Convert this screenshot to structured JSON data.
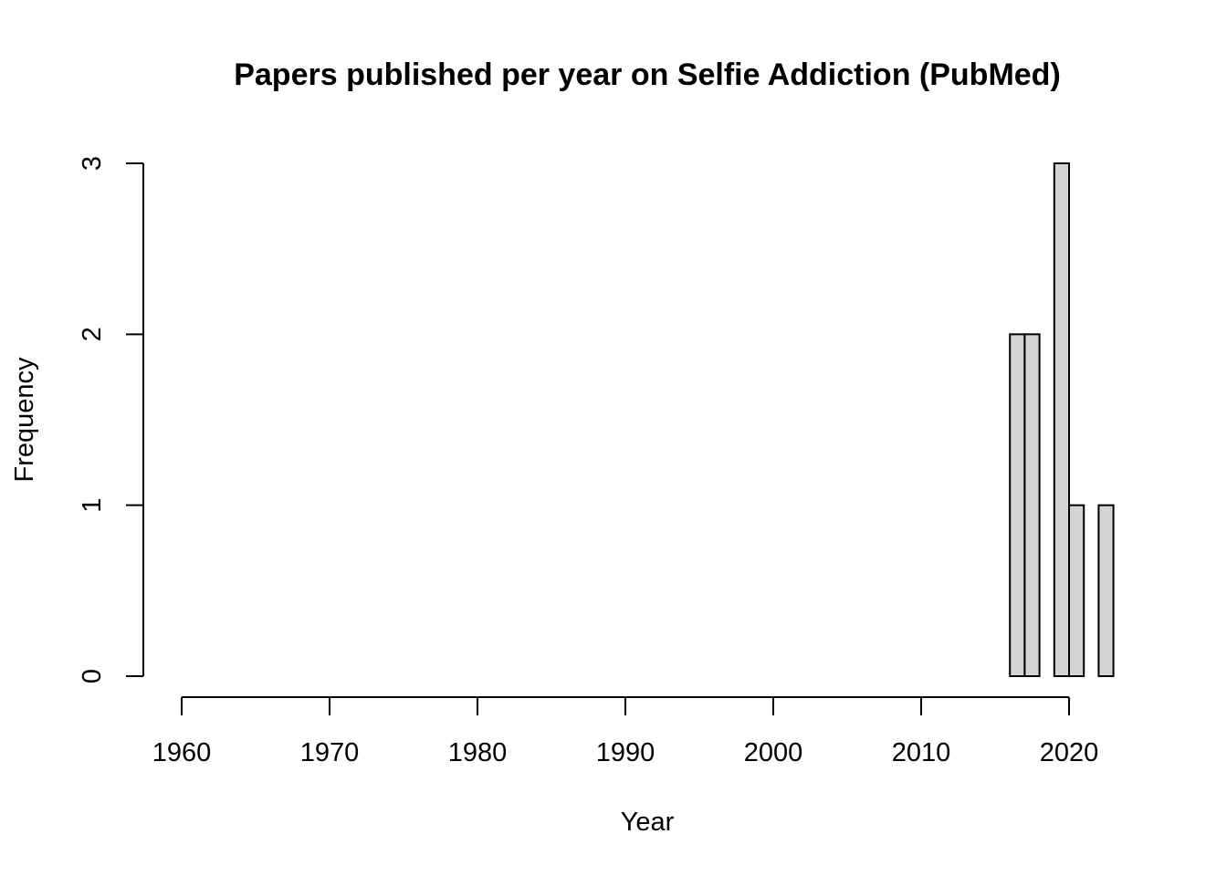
{
  "chart_data": {
    "type": "bar",
    "title": "Papers published per year on Selfie Addiction (PubMed)",
    "xlabel": "Year",
    "ylabel": "Frequency",
    "x_ticks": [
      1960,
      1970,
      1980,
      1990,
      2000,
      2010,
      2020
    ],
    "x_tick_labels": [
      "1960",
      "1970",
      "1980",
      "1990",
      "2000",
      "2010",
      "2020"
    ],
    "y_ticks": [
      0,
      1,
      2,
      3
    ],
    "y_tick_labels": [
      "0",
      "1",
      "2",
      "3"
    ],
    "xlim": [
      1960,
      2023
    ],
    "ylim": [
      0,
      3
    ],
    "bars": [
      {
        "x_start": 2016,
        "x_end": 2017,
        "value": 2
      },
      {
        "x_start": 2017,
        "x_end": 2018,
        "value": 2
      },
      {
        "x_start": 2018,
        "x_end": 2019,
        "value": 0
      },
      {
        "x_start": 2019,
        "x_end": 2020,
        "value": 3
      },
      {
        "x_start": 2020,
        "x_end": 2021,
        "value": 1
      },
      {
        "x_start": 2021,
        "x_end": 2022,
        "value": 0
      },
      {
        "x_start": 2022,
        "x_end": 2023,
        "value": 1
      }
    ],
    "colors": {
      "bar_fill": "#d3d3d3",
      "bar_stroke": "#000000"
    },
    "grid": false,
    "legend": "none"
  }
}
